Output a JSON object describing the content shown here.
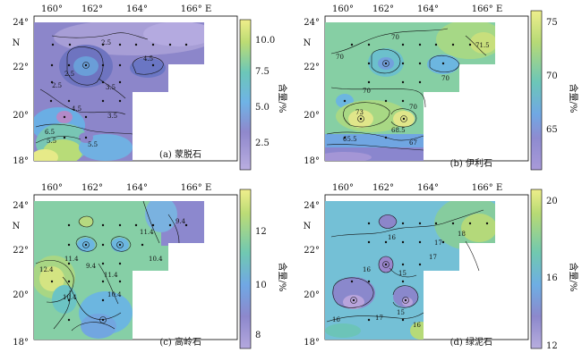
{
  "chart_data": [
    {
      "type": "heatmap",
      "panel_label": "(a) 蒙脱石",
      "colorbar_title": "含量/%",
      "colorbar_ticks": [
        "10.0",
        "7.5",
        "5.0",
        "2.5"
      ],
      "colorbar_range": [
        0,
        12
      ],
      "contour_labels": [
        "2.5",
        "4.5",
        "3.5",
        "2.5",
        "3.5",
        "6.5",
        "5.5",
        "4.5",
        "5.5",
        "2.5"
      ]
    },
    {
      "type": "heatmap",
      "panel_label": "(b) 伊利石",
      "colorbar_title": "含量/%",
      "colorbar_ticks": [
        "75",
        "70",
        "65"
      ],
      "colorbar_range": [
        61,
        76
      ],
      "contour_labels": [
        "70",
        "71.5",
        "70",
        "73",
        "70",
        "70",
        "68.5",
        "67",
        "65.5",
        "70"
      ]
    },
    {
      "type": "heatmap",
      "panel_label": "(c) 高岭石",
      "colorbar_title": "含量/%",
      "colorbar_ticks": [
        "12",
        "10",
        "8"
      ],
      "colorbar_range": [
        7.5,
        13.5
      ],
      "contour_labels": [
        "9.4",
        "11.4",
        "10.4",
        "12.4",
        "11.4",
        "11.4",
        "10.4",
        "10.4",
        "9.4"
      ]
    },
    {
      "type": "heatmap",
      "panel_label": "(d) 绿泥石",
      "colorbar_title": "含量/%",
      "colorbar_ticks": [
        "20",
        "16",
        "12"
      ],
      "colorbar_range": [
        12,
        20.5
      ],
      "contour_labels": [
        "18",
        "17",
        "16",
        "17",
        "16",
        "15",
        "16",
        "17",
        "15",
        "16"
      ]
    }
  ],
  "axes": {
    "x_ticks": [
      "160°",
      "162°",
      "164°",
      "166° E"
    ],
    "y_ticks": [
      "24°",
      "N",
      "22°",
      "20°",
      "18°"
    ]
  }
}
